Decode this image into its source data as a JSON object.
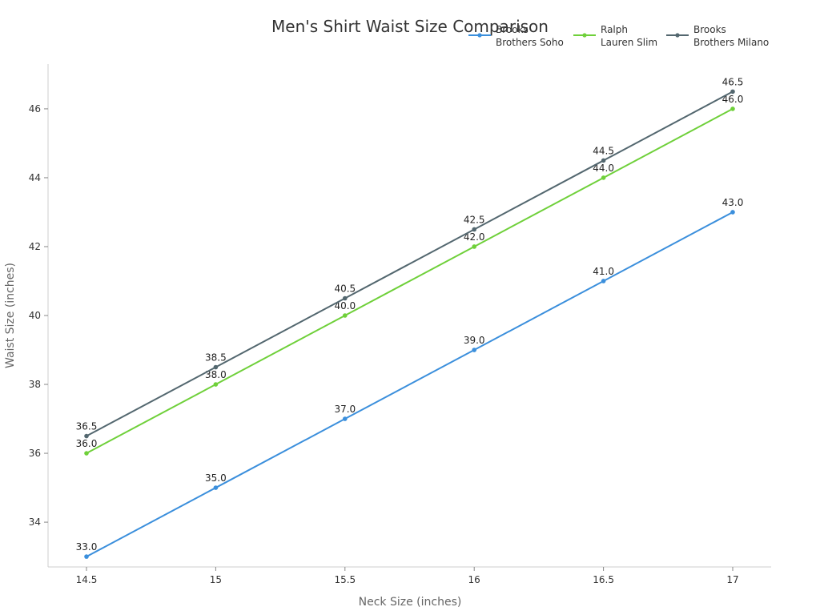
{
  "chart_data": {
    "type": "line",
    "title": "Men's Shirt Waist Size Comparison",
    "xlabel": "Neck Size (inches)",
    "ylabel": "Waist Size (inches)",
    "categories": [
      "14.5",
      "15",
      "15.5",
      "16",
      "16.5",
      "17"
    ],
    "ylim": [
      32.7,
      47.3
    ],
    "yticks": [
      "34",
      "36",
      "38",
      "40",
      "42",
      "44",
      "46"
    ],
    "grid": false,
    "legend_position": "top-right",
    "series": [
      {
        "name": "Brooks Brothers Soho",
        "legend_lines": [
          "Brooks",
          "Brothers Soho"
        ],
        "color": "#3b8fdc",
        "values": [
          33.0,
          35.0,
          37.0,
          39.0,
          41.0,
          43.0
        ],
        "labels": [
          "33.0",
          "35.0",
          "37.0",
          "39.0",
          "41.0",
          "43.0"
        ]
      },
      {
        "name": "Ralph Lauren Slim",
        "legend_lines": [
          "Ralph",
          "Lauren Slim"
        ],
        "color": "#6fd03a",
        "values": [
          36.0,
          38.0,
          40.0,
          42.0,
          44.0,
          46.0
        ],
        "labels": [
          "36.0",
          "38.0",
          "40.0",
          "42.0",
          "44.0",
          "46.0"
        ]
      },
      {
        "name": "Brooks Brothers Milano",
        "legend_lines": [
          "Brooks",
          "Brothers Milano"
        ],
        "color": "#53676f",
        "values": [
          36.5,
          38.5,
          40.5,
          42.5,
          44.5,
          46.5
        ],
        "labels": [
          "36.5",
          "38.5",
          "40.5",
          "42.5",
          "44.5",
          "46.5"
        ]
      }
    ]
  }
}
